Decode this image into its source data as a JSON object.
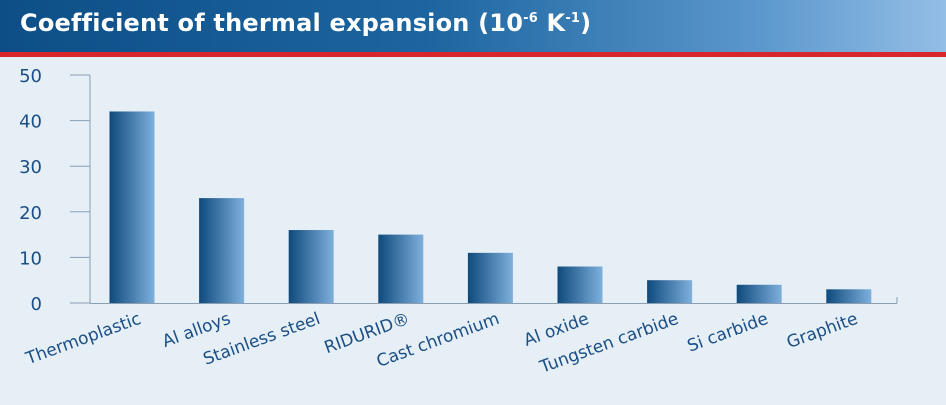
{
  "title": {
    "main": "Coefficient of thermal expansion (10",
    "exp1": "-6",
    "unit": " K",
    "exp2": "-1",
    "close": ")"
  },
  "colors": {
    "header_start": "#0d4e86",
    "header_end": "#93bee6",
    "header_rule": "#d7262c",
    "plot_background": "#e6eef6",
    "bar_dark": "#0e4a7c",
    "bar_light": "#7fb0dc",
    "text": "#1a4f86"
  },
  "chart_data": {
    "type": "bar",
    "categories": [
      "Thermoplastic",
      "Al alloys",
      "Stainless steel",
      "RIDURID®",
      "Cast chromium",
      "Al oxide",
      "Tungsten carbide",
      "Si carbide",
      "Graphite"
    ],
    "values": [
      42,
      23,
      16,
      15,
      11,
      8,
      5,
      4,
      3
    ],
    "title": "Coefficient of thermal expansion (10-6 K-1)",
    "xlabel": "",
    "ylabel": "",
    "ylim": [
      0,
      50
    ],
    "yticks": [
      0,
      10,
      20,
      30,
      40,
      50
    ],
    "grid": false,
    "legend": "none"
  }
}
